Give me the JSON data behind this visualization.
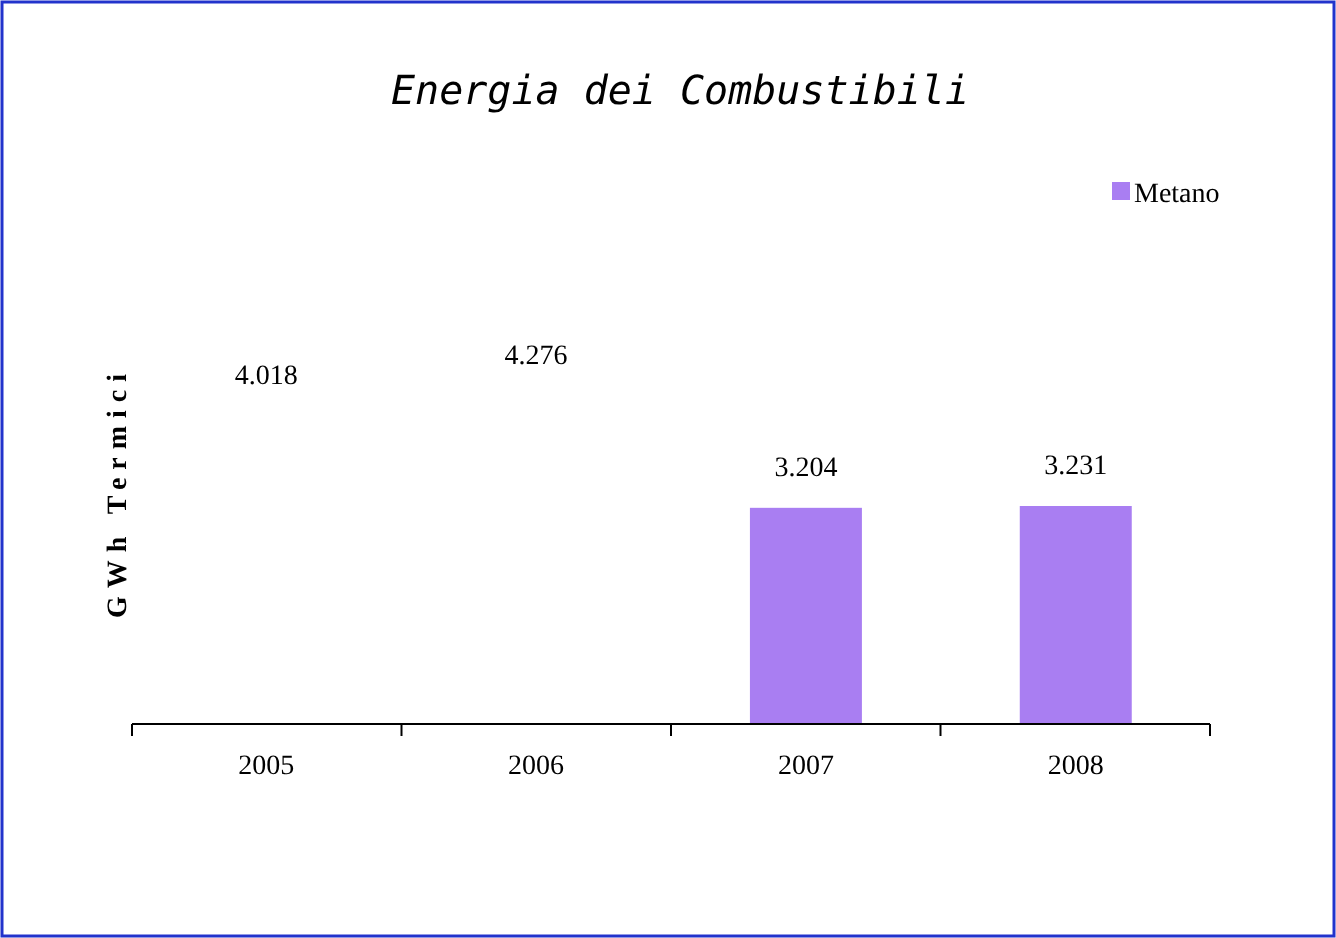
{
  "chart_data": {
    "type": "bar",
    "title": "Energia dei Combustibili",
    "ylabel": "GWh Termici",
    "categories": [
      "2005",
      "2006",
      "2007",
      "2008"
    ],
    "series": [
      {
        "name": "Metano",
        "color": "#a97ef2",
        "values": [
          null,
          null,
          3.204,
          3.231
        ]
      }
    ],
    "data_labels": true,
    "legend": "top right",
    "annotations": [
      "4.018",
      "4.276"
    ]
  }
}
